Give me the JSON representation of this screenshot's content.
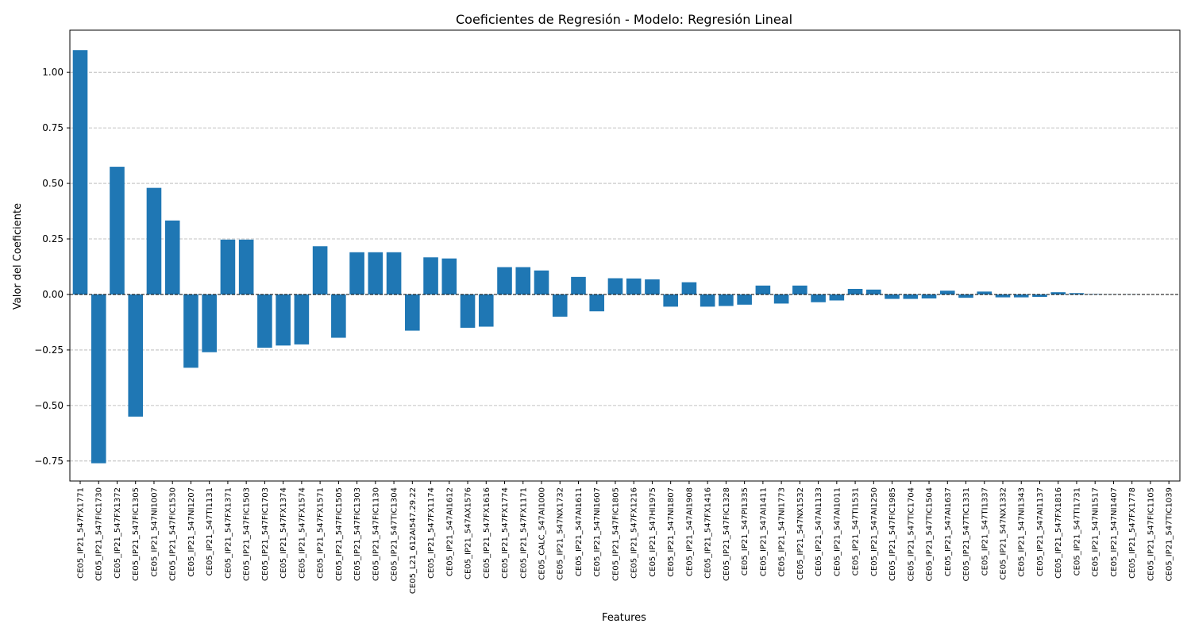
{
  "chart_data": {
    "type": "bar",
    "title": "Coeficientes de Regresión - Modelo: Regresión Lineal",
    "xlabel": "Features",
    "ylabel": "Valor del Coeficiente",
    "ylim": [
      -0.84,
      1.19
    ],
    "yticks": [
      -0.75,
      -0.5,
      -0.25,
      0.0,
      0.25,
      0.5,
      0.75,
      1.0
    ],
    "ytick_labels": [
      "−0.75",
      "−0.50",
      "−0.25",
      "0.00",
      "0.25",
      "0.50",
      "0.75",
      "1.00"
    ],
    "grid": "y-dashed",
    "zero_line": "dashed",
    "bar_color": "#1f77b4",
    "categories": [
      "CE05_IP21_547FX1771",
      "CE05_IP21_547FIC1730",
      "CE05_IP21_547FX1372",
      "CE05_IP21_547FIC1305",
      "CE05_IP21_547NI1007",
      "CE05_IP21_547FIC1530",
      "CE05_IP21_547NI1207",
      "CE05_IP21_547TI1131",
      "CE05_IP21_547FX1371",
      "CE05_IP21_547FIC1503",
      "CE05_IP21_547FIC1703",
      "CE05_IP21_547FX1374",
      "CE05_IP21_547FX1574",
      "CE05_IP21_547FX1571",
      "CE05_IP21_547FIC1505",
      "CE05_IP21_547FIC1303",
      "CE05_IP21_547FIC1130",
      "CE05_IP21_547TIC1304",
      "CE05_L21_612AI547.29.22",
      "CE05_IP21_547FX1174",
      "CE05_IP21_547AI1612",
      "CE05_IP21_547AX1576",
      "CE05_IP21_547FX1616",
      "CE05_IP21_547FX1774",
      "CE05_IP21_547FX1171",
      "CE05_CALC_547AI1000",
      "CE05_IP21_547NX1732",
      "CE05_IP21_547AI1611",
      "CE05_IP21_547NI1607",
      "CE05_IP21_547FIC1805",
      "CE05_IP21_547FX1216",
      "CE05_IP21_547HI1975",
      "CE05_IP21_547NI1807",
      "CE05_IP21_547AI1908",
      "CE05_IP21_547FX1416",
      "CE05_IP21_547FIC1328",
      "CE05_IP21_547PI1335",
      "CE05_IP21_547AI1411",
      "CE05_IP21_547NI1773",
      "CE05_IP21_547NX1532",
      "CE05_IP21_547AI1133",
      "CE05_IP21_547AI1011",
      "CE05_IP21_547TI1531",
      "CE05_IP21_547AI1250",
      "CE05_IP21_547FIC1985",
      "CE05_IP21_547TIC1704",
      "CE05_IP21_547TIC1504",
      "CE05_IP21_547AI1637",
      "CE05_IP21_547TIC1331",
      "CE05_IP21_547TI1337",
      "CE05_IP21_547NX1332",
      "CE05_IP21_547NI1343",
      "CE05_IP21_547AI1137",
      "CE05_IP21_547FX1816",
      "CE05_IP21_547TI1731",
      "CE05_IP21_547NI1517",
      "CE05_IP21_547NI1407",
      "CE05_IP21_547FX1778",
      "CE05_IP21_547FIC1105",
      "CE05_IP21_547TIC1039"
    ],
    "values": [
      1.1,
      -0.76,
      0.575,
      -0.55,
      0.48,
      0.333,
      -0.33,
      -0.26,
      0.247,
      0.247,
      -0.24,
      -0.23,
      -0.225,
      0.217,
      -0.195,
      0.19,
      0.19,
      0.19,
      -0.163,
      0.167,
      0.162,
      -0.15,
      -0.145,
      0.123,
      0.123,
      0.108,
      -0.1,
      0.079,
      -0.076,
      0.073,
      0.072,
      0.068,
      -0.055,
      0.055,
      -0.055,
      -0.052,
      -0.046,
      0.04,
      -0.041,
      0.04,
      -0.035,
      -0.027,
      0.025,
      0.022,
      -0.02,
      -0.02,
      -0.018,
      0.017,
      -0.015,
      0.013,
      -0.013,
      -0.013,
      -0.011,
      0.01,
      0.006,
      0.002,
      0.001,
      0.001,
      0.0,
      0.0
    ]
  }
}
